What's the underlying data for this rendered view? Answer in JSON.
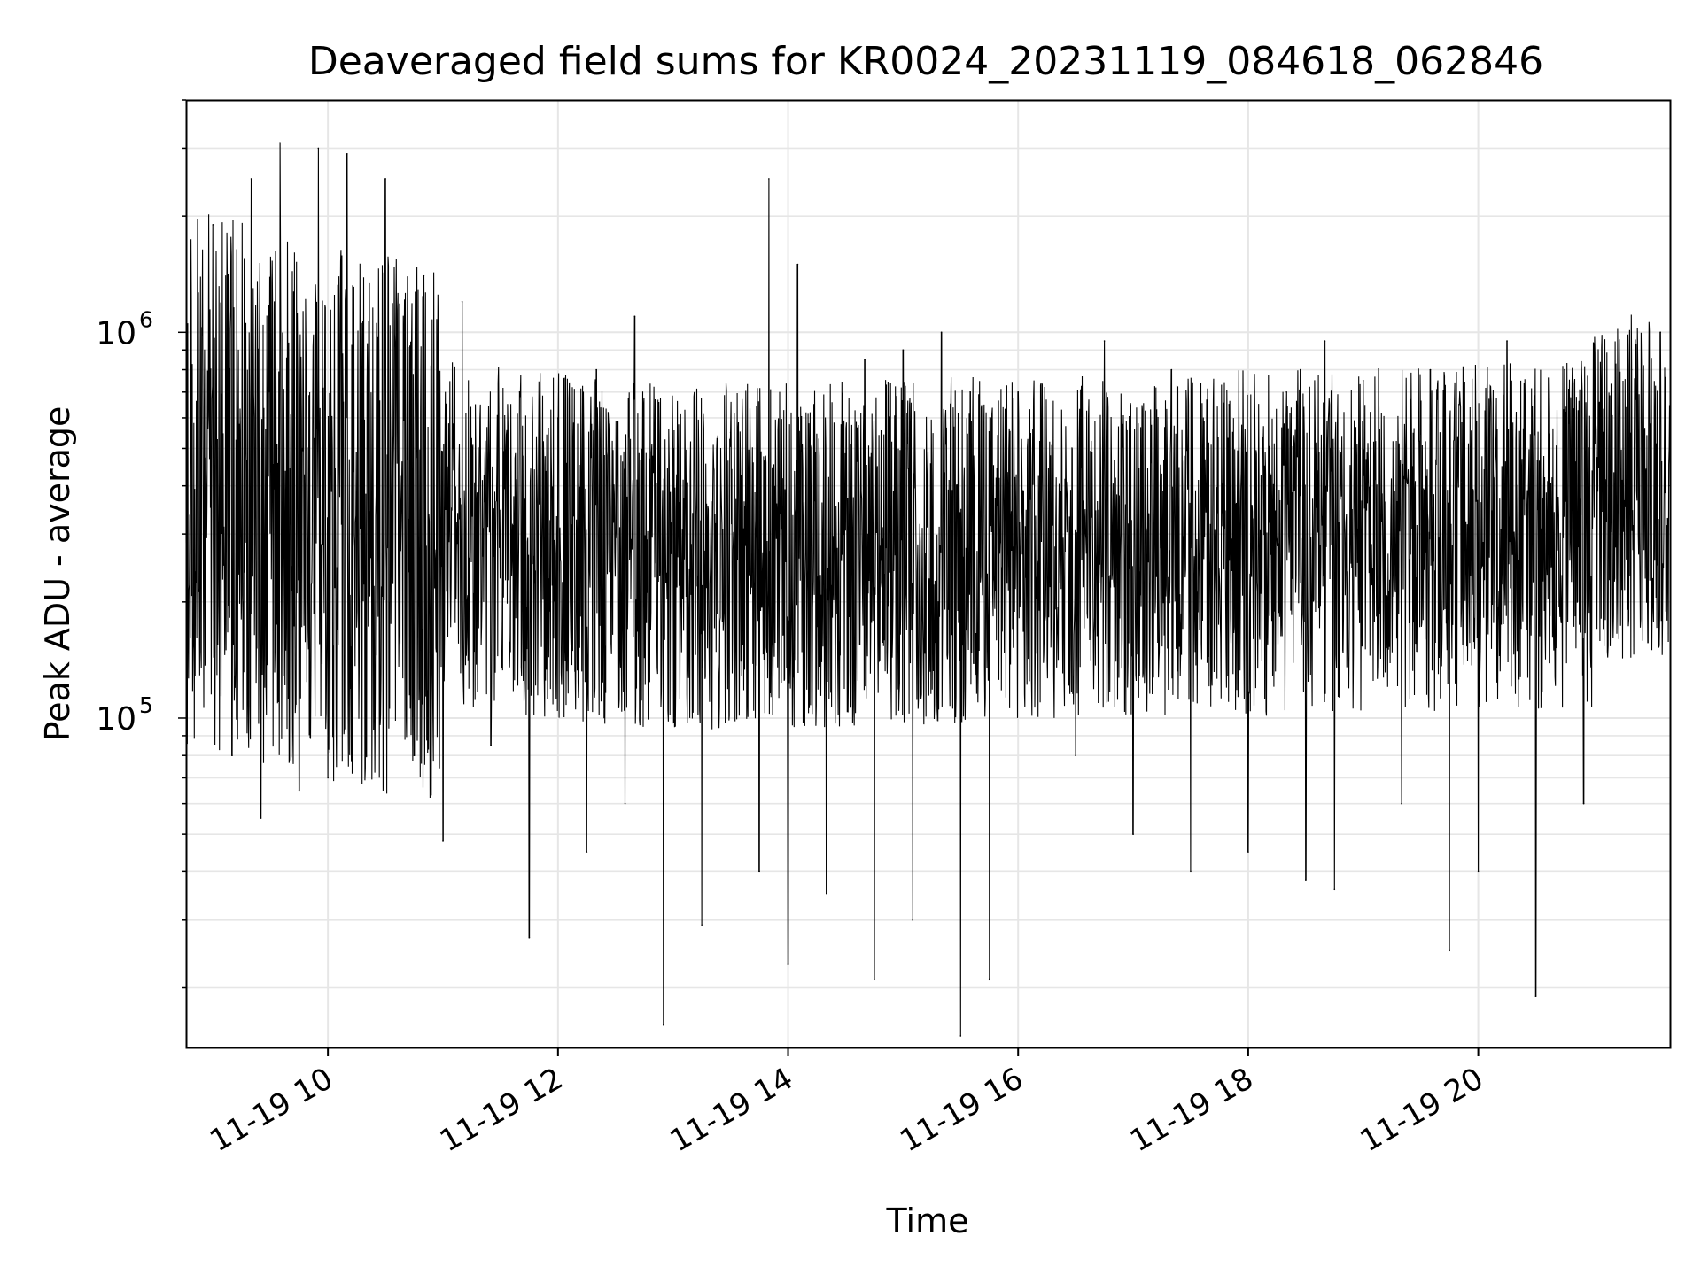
{
  "chart_data": {
    "type": "line",
    "title": "Deaveraged field sums for KR0024_20231119_084618_062846",
    "xlabel": "Time",
    "ylabel": "Peak ADU - average",
    "y_scale": "log",
    "grid": true,
    "grid_minor": true,
    "line_color": "#000000",
    "grid_color": "#e6e6e6",
    "x_range": [
      "11-19 08:46",
      "11-19 21:40"
    ],
    "ylim": [
      14000,
      4000000
    ],
    "x_ticks": [
      {
        "hour": 10,
        "label": "11-19 10"
      },
      {
        "hour": 12,
        "label": "11-19 12"
      },
      {
        "hour": 14,
        "label": "11-19 14"
      },
      {
        "hour": 16,
        "label": "11-19 16"
      },
      {
        "hour": 18,
        "label": "11-19 18"
      },
      {
        "hour": 20,
        "label": "11-19 20"
      }
    ],
    "y_ticks": [
      {
        "value": 100000,
        "base": "10",
        "exp": "5"
      },
      {
        "value": 1000000,
        "base": "10",
        "exp": "6"
      }
    ],
    "series": [
      {
        "points": [
          [
            "11-19 08:46",
            300000
          ],
          [
            "11-19 09:00",
            1900000
          ],
          [
            "11-19 09:10",
            80000
          ],
          [
            "11-19 09:20",
            2500000
          ],
          [
            "11-19 09:25",
            55000
          ],
          [
            "11-19 09:35",
            3100000
          ],
          [
            "11-19 09:45",
            65000
          ],
          [
            "11-19 09:55",
            3000000
          ],
          [
            "11-19 10:00",
            70000
          ],
          [
            "11-19 10:10",
            2900000
          ],
          [
            "11-19 10:20",
            80000
          ],
          [
            "11-19 10:30",
            2500000
          ],
          [
            "11-19 10:45",
            80000
          ],
          [
            "11-19 10:50",
            1400000
          ],
          [
            "11-19 11:00",
            48000
          ],
          [
            "11-19 11:10",
            1200000
          ],
          [
            "11-19 11:25",
            85000
          ],
          [
            "11-19 11:40",
            700000
          ],
          [
            "11-19 11:45",
            27000
          ],
          [
            "11-19 12:00",
            600000
          ],
          [
            "11-19 12:15",
            45000
          ],
          [
            "11-19 12:20",
            800000
          ],
          [
            "11-19 12:35",
            60000
          ],
          [
            "11-19 12:40",
            1100000
          ],
          [
            "11-19 12:55",
            16000
          ],
          [
            "11-19 13:00",
            500000
          ],
          [
            "11-19 13:15",
            29000
          ],
          [
            "11-19 13:30",
            550000
          ],
          [
            "11-19 13:45",
            40000
          ],
          [
            "11-19 13:50",
            2500000
          ],
          [
            "11-19 14:00",
            23000
          ],
          [
            "11-19 14:05",
            1500000
          ],
          [
            "11-19 14:20",
            35000
          ],
          [
            "11-19 14:40",
            850000
          ],
          [
            "11-19 14:45",
            21000
          ],
          [
            "11-19 15:00",
            900000
          ],
          [
            "11-19 15:05",
            30000
          ],
          [
            "11-19 15:20",
            1000000
          ],
          [
            "11-19 15:30",
            15000
          ],
          [
            "11-19 15:35",
            700000
          ],
          [
            "11-19 15:45",
            21000
          ],
          [
            "11-19 16:00",
            700000
          ],
          [
            "11-19 16:30",
            80000
          ],
          [
            "11-19 16:45",
            950000
          ],
          [
            "11-19 17:00",
            50000
          ],
          [
            "11-19 17:20",
            800000
          ],
          [
            "11-19 17:30",
            40000
          ],
          [
            "11-19 17:50",
            650000
          ],
          [
            "11-19 18:00",
            45000
          ],
          [
            "11-19 18:20",
            700000
          ],
          [
            "11-19 18:30",
            38000
          ],
          [
            "11-19 18:40",
            950000
          ],
          [
            "11-19 18:45",
            36000
          ],
          [
            "11-19 19:00",
            750000
          ],
          [
            "11-19 19:20",
            60000
          ],
          [
            "11-19 19:35",
            800000
          ],
          [
            "11-19 19:45",
            25000
          ],
          [
            "11-19 19:50",
            650000
          ],
          [
            "11-19 20:00",
            40000
          ],
          [
            "11-19 20:15",
            950000
          ],
          [
            "11-19 20:30",
            19000
          ],
          [
            "11-19 20:45",
            800000
          ],
          [
            "11-19 20:55",
            60000
          ],
          [
            "11-19 21:05",
            550000
          ],
          [
            "11-19 21:20",
            800000
          ],
          [
            "11-19 21:35",
            1000000
          ],
          [
            "11-19 21:40",
            400000
          ]
        ]
      }
    ]
  }
}
